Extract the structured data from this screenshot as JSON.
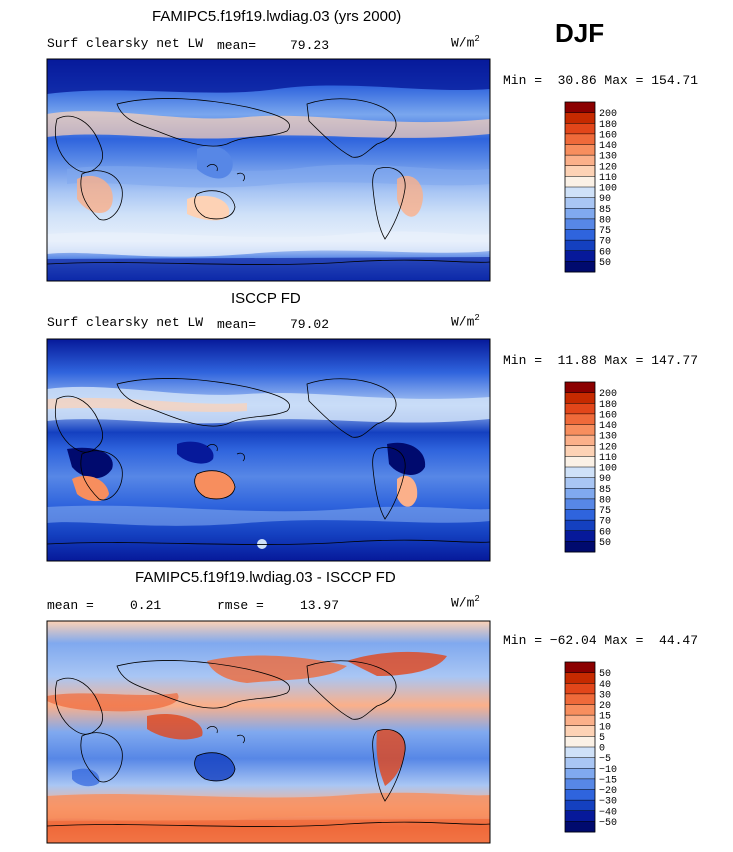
{
  "season": "DJF",
  "units_prefix": "W/m",
  "units_exp": "2",
  "panels": [
    {
      "title": "FAMIPC5.f19f19.lwdiag.03 (yrs 2000)",
      "subtitle": "Surf clearsky net LW",
      "stat1_label": "mean=",
      "stat1_value": "79.23",
      "stat2_label": "",
      "stat2_value": "",
      "minmax": "Min =  30.86 Max = 154.71"
    },
    {
      "title": "ISCCP FD",
      "subtitle": "Surf clearsky net LW",
      "stat1_label": "mean=",
      "stat1_value": "79.02",
      "stat2_label": "",
      "stat2_value": "",
      "minmax": "Min =  11.88 Max = 147.77"
    },
    {
      "title": "FAMIPC5.f19f19.lwdiag.03 - ISCCP FD",
      "subtitle": "",
      "stat1_label": "mean =",
      "stat1_value": "0.21",
      "stat2_label": "rmse =",
      "stat2_value": "13.97",
      "minmax": "Min = −62.04 Max =  44.47"
    }
  ],
  "chart_data": [
    {
      "type": "heatmap",
      "title": "FAMIPC5.f19f19.lwdiag.03 (yrs 2000)",
      "variable": "Surf clearsky net LW",
      "units": "W/m2",
      "mean": 79.23,
      "min": 30.86,
      "max": 154.71,
      "colorbar_levels": [
        "200",
        "180",
        "160",
        "140",
        "130",
        "120",
        "110",
        "100",
        "90",
        "85",
        "80",
        "75",
        "70",
        "60",
        "50"
      ],
      "colorbar_colors": [
        "#8b0000",
        "#c62a00",
        "#e2461a",
        "#ef6a3a",
        "#f78e5e",
        "#fbb08a",
        "#fdd2b5",
        "#fbf1e6",
        "#cfe1f8",
        "#a9c6f4",
        "#80a9ef",
        "#5787e6",
        "#2f64dd",
        "#1440c0",
        "#06199a",
        "#000a6e"
      ]
    },
    {
      "type": "heatmap",
      "title": "ISCCP FD",
      "variable": "Surf clearsky net LW",
      "units": "W/m2",
      "mean": 79.02,
      "min": 11.88,
      "max": 147.77,
      "colorbar_levels": [
        "200",
        "180",
        "160",
        "140",
        "130",
        "120",
        "110",
        "100",
        "90",
        "85",
        "80",
        "75",
        "70",
        "60",
        "50"
      ],
      "colorbar_colors": [
        "#8b0000",
        "#c62a00",
        "#e2461a",
        "#ef6a3a",
        "#f78e5e",
        "#fbb08a",
        "#fdd2b5",
        "#fbf1e6",
        "#cfe1f8",
        "#a9c6f4",
        "#80a9ef",
        "#5787e6",
        "#2f64dd",
        "#1440c0",
        "#06199a",
        "#000a6e"
      ]
    },
    {
      "type": "heatmap",
      "title": "FAMIPC5.f19f19.lwdiag.03 - ISCCP FD",
      "units": "W/m2",
      "mean": 0.21,
      "rmse": 13.97,
      "min": -62.04,
      "max": 44.47,
      "colorbar_levels": [
        "50",
        "40",
        "30",
        "20",
        "15",
        "10",
        "5",
        "0",
        "−5",
        "−10",
        "−15",
        "−20",
        "−30",
        "−40",
        "−50"
      ],
      "colorbar_colors": [
        "#8b0000",
        "#c62a00",
        "#e2461a",
        "#ef6a3a",
        "#f78e5e",
        "#fbb08a",
        "#fdd2b5",
        "#fbf1e6",
        "#cfe1f8",
        "#a9c6f4",
        "#80a9ef",
        "#5787e6",
        "#2f64dd",
        "#1440c0",
        "#06199a",
        "#000a6e"
      ]
    }
  ]
}
